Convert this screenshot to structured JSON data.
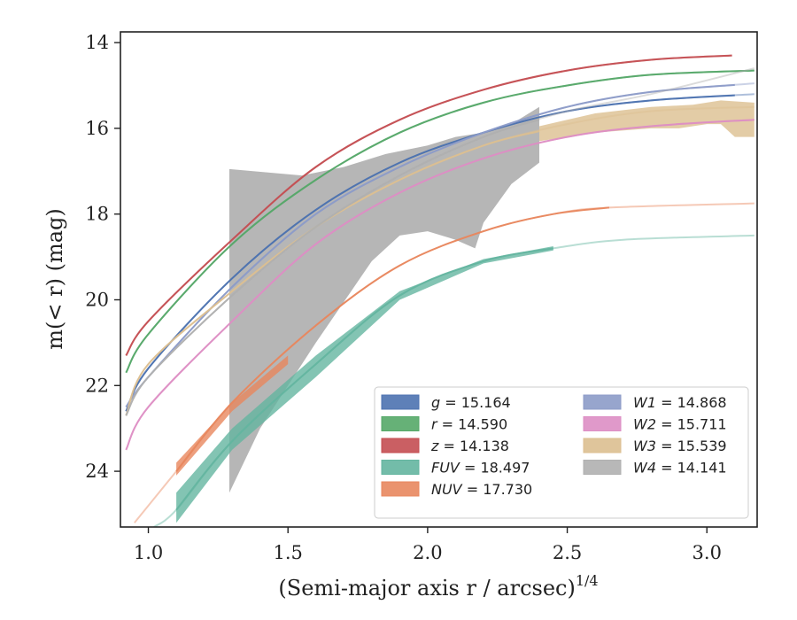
{
  "chart_data": {
    "type": "line",
    "xlabel": "(Semi-major axis r / arcsec)",
    "xlabel_exponent": "1/4",
    "ylabel": "m(< r) (mag)",
    "xlim": [
      0.9,
      3.18
    ],
    "ylim": [
      25.3,
      13.75
    ],
    "y_inverted": true,
    "x_ticks": [
      "1.0",
      "1.5",
      "2.0",
      "2.5",
      "3.0"
    ],
    "y_ticks": [
      "14",
      "16",
      "18",
      "20",
      "22",
      "24"
    ],
    "legend_position": "lower-right",
    "series": [
      {
        "name": "g",
        "legend_label": "= 15.164",
        "color": "#4c72b0",
        "x": [
          0.92,
          1.0,
          1.3,
          1.6,
          1.9,
          2.2,
          2.5,
          2.8,
          3.17
        ],
        "y": [
          22.6,
          21.6,
          19.5,
          17.9,
          16.8,
          16.1,
          15.6,
          15.35,
          15.2
        ],
        "solid_to": 3.1
      },
      {
        "name": "r",
        "legend_label": "= 14.590",
        "color": "#55a868",
        "x": [
          0.92,
          1.0,
          1.3,
          1.6,
          1.9,
          2.2,
          2.5,
          2.8,
          3.17
        ],
        "y": [
          21.7,
          20.8,
          18.7,
          17.2,
          16.1,
          15.4,
          15.0,
          14.75,
          14.65
        ],
        "solid_to": 3.17
      },
      {
        "name": "z",
        "legend_label": "= 14.138",
        "color": "#c44e52",
        "x": [
          0.92,
          1.0,
          1.3,
          1.6,
          1.9,
          2.2,
          2.5,
          2.8,
          3.09
        ],
        "y": [
          21.3,
          20.5,
          18.6,
          16.9,
          15.8,
          15.1,
          14.65,
          14.4,
          14.3
        ],
        "solid_to": 3.09
      },
      {
        "name": "FUV",
        "legend_label": "= 18.497",
        "color": "#64b5a0",
        "x": [
          1.02,
          1.1,
          1.3,
          1.6,
          1.9,
          2.2,
          2.45,
          2.7,
          3.17
        ],
        "y": [
          25.3,
          24.9,
          23.3,
          21.5,
          19.9,
          19.1,
          18.8,
          18.6,
          18.5
        ],
        "solid_from": 1.1,
        "solid_to": 2.45
      },
      {
        "name": "NUV",
        "legend_label": "= 17.730",
        "color": "#e8875e",
        "x": [
          0.95,
          1.1,
          1.3,
          1.6,
          1.9,
          2.2,
          2.45,
          2.65,
          3.17
        ],
        "y": [
          25.2,
          24.0,
          22.4,
          20.6,
          19.2,
          18.4,
          18.0,
          17.85,
          17.75
        ],
        "solid_from": 1.1,
        "solid_to": 2.65
      },
      {
        "name": "W1",
        "legend_label": "= 14.868",
        "color": "#8c9bc8",
        "x": [
          0.92,
          1.0,
          1.3,
          1.6,
          1.9,
          2.2,
          2.5,
          2.8,
          3.17
        ],
        "y": [
          22.5,
          21.8,
          19.7,
          18.0,
          16.9,
          16.1,
          15.5,
          15.15,
          14.95
        ],
        "solid_to": 3.1
      },
      {
        "name": "W2",
        "legend_label": "= 15.711",
        "color": "#dd8ec4",
        "x": [
          0.92,
          1.0,
          1.3,
          1.6,
          1.9,
          2.2,
          2.5,
          2.8,
          3.17
        ],
        "y": [
          23.5,
          22.5,
          20.5,
          18.7,
          17.5,
          16.7,
          16.2,
          15.95,
          15.8
        ],
        "solid_to": 3.17
      },
      {
        "name": "W3",
        "legend_label": "= 15.539",
        "color": "#dcbf90",
        "x": [
          0.92,
          1.0,
          1.3,
          1.6,
          1.9,
          2.2,
          2.5,
          2.8,
          3.17
        ],
        "y": [
          22.7,
          21.5,
          19.8,
          18.3,
          17.2,
          16.4,
          15.9,
          15.6,
          15.5
        ],
        "solid_to": 2.4
      },
      {
        "name": "W4",
        "legend_label": "= 14.141",
        "color": "#b0b0b0",
        "x": [
          0.92,
          1.0,
          1.3,
          1.6,
          1.9,
          2.2,
          2.5,
          2.8,
          3.17
        ],
        "y": [
          22.7,
          21.8,
          19.9,
          18.3,
          17.1,
          16.2,
          15.6,
          15.2,
          14.6
        ],
        "solid_to": 2.4
      }
    ],
    "bands": [
      {
        "name": "W4",
        "color": "#a9a9a9",
        "x": [
          1.29,
          1.29,
          1.55,
          1.7,
          1.85,
          2.0,
          2.1,
          2.2,
          2.3,
          2.4,
          2.4,
          2.36,
          2.3,
          2.2,
          2.17,
          2.1,
          2.0,
          1.9,
          1.8,
          1.6,
          1.4,
          1.29
        ],
        "y": [
          16.95,
          16.95,
          17.1,
          16.9,
          16.6,
          16.4,
          16.2,
          16.1,
          15.9,
          15.5,
          16.8,
          17.0,
          17.3,
          18.2,
          18.8,
          18.6,
          18.4,
          18.5,
          19.1,
          21.0,
          23.0,
          24.5
        ]
      },
      {
        "name": "W3",
        "color": "#dcbf90",
        "x": [
          2.4,
          2.6,
          2.8,
          2.95,
          3.05,
          3.17,
          3.17,
          3.1,
          3.05,
          3.0,
          2.9,
          2.8,
          2.6,
          2.4
        ],
        "y": [
          15.95,
          15.65,
          15.5,
          15.45,
          15.35,
          15.4,
          16.2,
          16.2,
          15.9,
          15.9,
          16.0,
          16.0,
          16.1,
          16.3
        ]
      },
      {
        "name": "FUV",
        "color": "#64b5a0",
        "x": [
          1.1,
          1.3,
          1.6,
          1.9,
          2.2,
          2.45,
          2.45,
          2.2,
          1.9,
          1.6,
          1.3,
          1.1
        ],
        "y": [
          24.5,
          23.0,
          21.3,
          19.8,
          19.05,
          18.75,
          18.85,
          19.15,
          20.0,
          21.8,
          23.5,
          25.2
        ]
      },
      {
        "name": "NUV",
        "color": "#e8875e",
        "x": [
          1.1,
          1.3,
          1.5,
          1.5,
          1.3,
          1.1
        ],
        "y": [
          23.8,
          22.4,
          21.3,
          21.5,
          22.6,
          24.1
        ]
      }
    ]
  }
}
